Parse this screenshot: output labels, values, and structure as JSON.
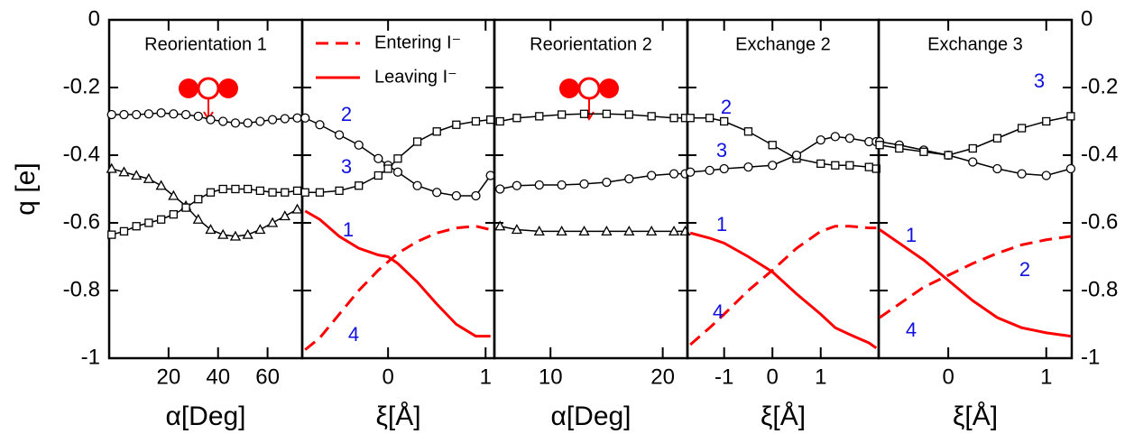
{
  "chart_data": [
    {
      "type": "line",
      "title": "Reorientation 1",
      "xlabel": "α[Deg]",
      "ylabel": "q [e]",
      "yaxis": "left",
      "xlim": [
        -4,
        74
      ],
      "xticks": [
        20,
        40,
        60
      ],
      "ylim": [
        -1,
        0
      ],
      "yticks": [
        0,
        -0.2,
        -0.4,
        -0.6,
        -0.8,
        -1
      ],
      "series": [
        {
          "color": "#000000",
          "marker": "circle",
          "x": [
            -3,
            2,
            7,
            12,
            17,
            22,
            27,
            32,
            37,
            42,
            47,
            52,
            57,
            62,
            67,
            72
          ],
          "values": [
            -0.28,
            -0.28,
            -0.28,
            -0.278,
            -0.275,
            -0.278,
            -0.28,
            -0.285,
            -0.295,
            -0.3,
            -0.305,
            -0.305,
            -0.3,
            -0.295,
            -0.292,
            -0.29
          ]
        },
        {
          "color": "#000000",
          "marker": "triangle",
          "x": [
            -3,
            2,
            7,
            12,
            17,
            22,
            27,
            32,
            37,
            42,
            47,
            52,
            57,
            62,
            67,
            72
          ],
          "values": [
            -0.44,
            -0.45,
            -0.46,
            -0.47,
            -0.49,
            -0.52,
            -0.55,
            -0.59,
            -0.62,
            -0.635,
            -0.64,
            -0.635,
            -0.62,
            -0.6,
            -0.58,
            -0.56
          ]
        },
        {
          "color": "#000000",
          "marker": "square",
          "x": [
            -3,
            2,
            7,
            12,
            17,
            22,
            27,
            32,
            37,
            42,
            47,
            52,
            57,
            62,
            67,
            72
          ],
          "values": [
            -0.635,
            -0.625,
            -0.61,
            -0.6,
            -0.59,
            -0.575,
            -0.555,
            -0.53,
            -0.51,
            -0.5,
            -0.5,
            -0.5,
            -0.505,
            -0.51,
            -0.51,
            -0.505
          ]
        }
      ]
    },
    {
      "type": "line",
      "xlabel": "ξ[Å]",
      "yaxis": "none",
      "legend": "upper left",
      "xlim": [
        -0.88,
        1.09
      ],
      "xticks": [
        0,
        1
      ],
      "ylim": [
        -1,
        0
      ],
      "yticks": [
        0,
        -0.2,
        -0.4,
        -0.6,
        -0.8,
        -1
      ],
      "annotations": [
        "2",
        "3",
        "1",
        "4"
      ],
      "series": [
        {
          "name": "Entering I⁻",
          "color": "#ff0000",
          "dash": true,
          "x": [
            -0.85,
            -0.7,
            -0.5,
            -0.3,
            -0.1,
            0,
            0.1,
            0.3,
            0.5,
            0.7,
            0.9,
            1.05
          ],
          "values": [
            -0.975,
            -0.94,
            -0.87,
            -0.8,
            -0.74,
            -0.715,
            -0.69,
            -0.655,
            -0.63,
            -0.615,
            -0.61,
            -0.62
          ]
        },
        {
          "name": "Leaving I⁻",
          "color": "#ff0000",
          "x": [
            -0.85,
            -0.7,
            -0.5,
            -0.3,
            -0.1,
            0,
            0.1,
            0.3,
            0.5,
            0.7,
            0.9,
            1.05
          ],
          "values": [
            -0.565,
            -0.59,
            -0.64,
            -0.675,
            -0.695,
            -0.7,
            -0.72,
            -0.775,
            -0.84,
            -0.9,
            -0.935,
            -0.935
          ]
        },
        {
          "color": "#000000",
          "marker": "circle",
          "x": [
            -0.85,
            -0.7,
            -0.5,
            -0.3,
            -0.1,
            0,
            0.1,
            0.3,
            0.5,
            0.7,
            0.9,
            1.05
          ],
          "values": [
            -0.29,
            -0.31,
            -0.34,
            -0.37,
            -0.41,
            -0.43,
            -0.45,
            -0.49,
            -0.51,
            -0.52,
            -0.52,
            -0.46
          ]
        },
        {
          "color": "#000000",
          "marker": "square",
          "x": [
            -0.85,
            -0.7,
            -0.5,
            -0.3,
            -0.1,
            0,
            0.1,
            0.3,
            0.5,
            0.7,
            0.9,
            1.05
          ],
          "values": [
            -0.51,
            -0.51,
            -0.505,
            -0.49,
            -0.46,
            -0.44,
            -0.41,
            -0.36,
            -0.33,
            -0.31,
            -0.3,
            -0.295
          ]
        }
      ]
    },
    {
      "type": "line",
      "title": "Reorientation 2",
      "xlabel": "α[Deg]",
      "yaxis": "none",
      "xlim": [
        5,
        22.2
      ],
      "xticks": [
        10,
        20
      ],
      "ylim": [
        -1,
        0
      ],
      "yticks": [
        0,
        -0.2,
        -0.4,
        -0.6,
        -0.8,
        -1
      ],
      "series": [
        {
          "color": "#000000",
          "marker": "square",
          "x": [
            5.5,
            7,
            9,
            11,
            13,
            15,
            17,
            19,
            21,
            22
          ],
          "values": [
            -0.3,
            -0.29,
            -0.285,
            -0.28,
            -0.278,
            -0.278,
            -0.28,
            -0.285,
            -0.29,
            -0.29
          ]
        },
        {
          "color": "#000000",
          "marker": "circle",
          "x": [
            5.5,
            7,
            9,
            11,
            13,
            15,
            17,
            19,
            21,
            22
          ],
          "values": [
            -0.5,
            -0.49,
            -0.488,
            -0.488,
            -0.485,
            -0.48,
            -0.47,
            -0.46,
            -0.455,
            -0.455
          ]
        },
        {
          "color": "#000000",
          "marker": "triangle",
          "x": [
            5.5,
            7,
            9,
            11,
            13,
            15,
            17,
            19,
            21,
            22
          ],
          "values": [
            -0.61,
            -0.62,
            -0.625,
            -0.625,
            -0.625,
            -0.625,
            -0.625,
            -0.625,
            -0.625,
            -0.625
          ]
        }
      ]
    },
    {
      "type": "line",
      "title": "Exchange 2",
      "xlabel": "ξ[Å]",
      "yaxis": "none",
      "xlim": [
        -1.76,
        2.2
      ],
      "xticks": [
        -1,
        0,
        1
      ],
      "ylim": [
        -1,
        0
      ],
      "yticks": [
        0,
        -0.2,
        -0.4,
        -0.6,
        -0.8,
        -1
      ],
      "annotations": [
        "2",
        "3",
        "1",
        "4"
      ],
      "series": [
        {
          "color": "#ff0000",
          "dash": true,
          "x": [
            -1.7,
            -1.3,
            -1,
            -0.5,
            0,
            0.5,
            1,
            1.3,
            1.6,
            2,
            2.15
          ],
          "values": [
            -0.96,
            -0.91,
            -0.87,
            -0.8,
            -0.74,
            -0.675,
            -0.625,
            -0.61,
            -0.61,
            -0.615,
            -0.615
          ]
        },
        {
          "color": "#ff0000",
          "x": [
            -1.7,
            -1.3,
            -1,
            -0.5,
            0,
            0.5,
            1,
            1.3,
            1.6,
            2,
            2.15
          ],
          "values": [
            -0.63,
            -0.645,
            -0.66,
            -0.7,
            -0.745,
            -0.81,
            -0.87,
            -0.91,
            -0.93,
            -0.955,
            -0.97
          ]
        },
        {
          "color": "#000000",
          "marker": "square",
          "x": [
            -1.7,
            -1.3,
            -1,
            -0.5,
            0,
            0.5,
            1,
            1.3,
            1.6,
            2,
            2.15
          ],
          "values": [
            -0.29,
            -0.29,
            -0.3,
            -0.33,
            -0.37,
            -0.41,
            -0.425,
            -0.43,
            -0.43,
            -0.435,
            -0.44
          ]
        },
        {
          "color": "#000000",
          "marker": "circle",
          "x": [
            -1.7,
            -1.3,
            -1,
            -0.5,
            0,
            0.5,
            1,
            1.3,
            1.6,
            2,
            2.15
          ],
          "values": [
            -0.45,
            -0.445,
            -0.44,
            -0.435,
            -0.43,
            -0.4,
            -0.355,
            -0.345,
            -0.35,
            -0.36,
            -0.36
          ]
        }
      ]
    },
    {
      "type": "line",
      "title": "Exchange 3",
      "xlabel": "ξ[Å]",
      "yaxis": "right",
      "xlim": [
        -0.71,
        1.26
      ],
      "xticks": [
        0,
        1
      ],
      "ylim": [
        -1,
        0
      ],
      "yticks": [
        0,
        -0.2,
        -0.4,
        -0.6,
        -0.8,
        -1
      ],
      "annotations": [
        "3",
        "2",
        "1",
        "4"
      ],
      "series": [
        {
          "color": "#ff0000",
          "dash": true,
          "x": [
            -0.7,
            -0.5,
            -0.25,
            0,
            0.25,
            0.5,
            0.75,
            1,
            1.25
          ],
          "values": [
            -0.88,
            -0.84,
            -0.79,
            -0.755,
            -0.72,
            -0.69,
            -0.665,
            -0.65,
            -0.64
          ]
        },
        {
          "color": "#ff0000",
          "x": [
            -0.7,
            -0.5,
            -0.25,
            0,
            0.25,
            0.5,
            0.75,
            1,
            1.25
          ],
          "values": [
            -0.62,
            -0.66,
            -0.71,
            -0.77,
            -0.83,
            -0.88,
            -0.91,
            -0.925,
            -0.935
          ]
        },
        {
          "color": "#000000",
          "marker": "circle",
          "x": [
            -0.7,
            -0.5,
            -0.25,
            0,
            0.25,
            0.5,
            0.75,
            1,
            1.25
          ],
          "values": [
            -0.36,
            -0.37,
            -0.385,
            -0.4,
            -0.42,
            -0.44,
            -0.455,
            -0.46,
            -0.44
          ]
        },
        {
          "color": "#000000",
          "marker": "square",
          "x": [
            -0.7,
            -0.5,
            -0.25,
            0,
            0.25,
            0.5,
            0.75,
            1,
            1.25
          ],
          "values": [
            -0.37,
            -0.38,
            -0.39,
            -0.4,
            -0.38,
            -0.35,
            -0.32,
            -0.3,
            -0.285
          ]
        }
      ]
    }
  ]
}
